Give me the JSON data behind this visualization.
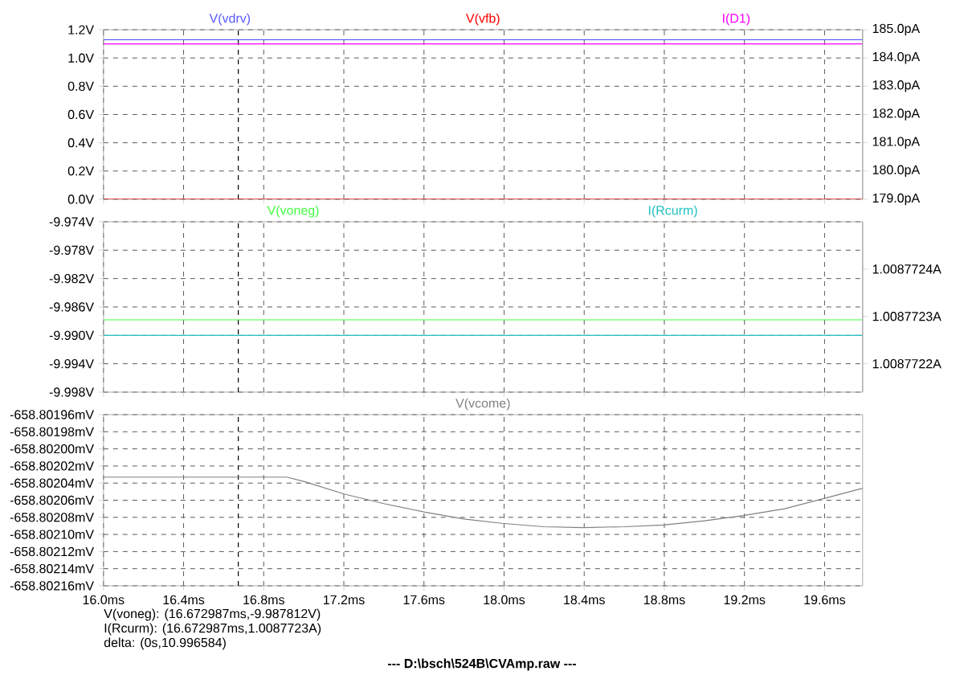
{
  "chart_data": [
    {
      "type": "line",
      "x": [
        16,
        19.79
      ],
      "xlim": [
        16,
        19.79
      ],
      "xticks": [
        {
          "value": 16.0,
          "label": null
        },
        {
          "value": 16.4,
          "label": null
        },
        {
          "value": 16.8,
          "label": null
        },
        {
          "value": 17.2,
          "label": null
        },
        {
          "value": 17.6,
          "label": null
        },
        {
          "value": 18.0,
          "label": null
        },
        {
          "value": 18.4,
          "label": null
        },
        {
          "value": 18.8,
          "label": null
        },
        {
          "value": 19.2,
          "label": null
        },
        {
          "value": 19.6,
          "label": null
        }
      ],
      "ylim": [
        0,
        1.2
      ],
      "yticks": [
        {
          "value": 0,
          "label": "0.0V"
        },
        {
          "value": 0.2,
          "label": "0.2V"
        },
        {
          "value": 0.4,
          "label": "0.4V"
        },
        {
          "value": 0.6,
          "label": "0.6V"
        },
        {
          "value": 0.8,
          "label": "0.8V"
        },
        {
          "value": 1.0,
          "label": "1.0V"
        },
        {
          "value": 1.2,
          "label": "1.2V"
        }
      ],
      "y2lim": [
        179,
        185
      ],
      "y2ticks": [
        {
          "value": 179,
          "label": "179.0pA"
        },
        {
          "value": 180,
          "label": "180.0pA"
        },
        {
          "value": 181,
          "label": "181.0pA"
        },
        {
          "value": 182,
          "label": "182.0pA"
        },
        {
          "value": 183,
          "label": "183.0pA"
        },
        {
          "value": 184,
          "label": "184.0pA"
        },
        {
          "value": 185,
          "label": "185.0pA"
        }
      ],
      "grid": true,
      "legend": "top",
      "tick_labels": "y",
      "series": [
        {
          "name": "V(vdrv)",
          "color": "#5a5aff",
          "values": [
            1.13,
            1.13
          ]
        },
        {
          "name": "V(vfb)",
          "color": "#ff0000",
          "values": [
            0,
            0
          ]
        },
        {
          "name": "I(D1)",
          "color": "#ff00ff",
          "values": [
            184.5,
            184.5
          ],
          "axis": "y2"
        }
      ],
      "ref_lines": [
        {
          "axis": "x",
          "value": 16.672987,
          "color": "#000000",
          "line_style": "dashed"
        }
      ]
    },
    {
      "type": "line",
      "x": [
        16,
        19.79
      ],
      "xlim": [
        16,
        19.79
      ],
      "xticks": [
        {
          "value": 16.0,
          "label": null
        },
        {
          "value": 16.4,
          "label": null
        },
        {
          "value": 16.8,
          "label": null
        },
        {
          "value": 17.2,
          "label": null
        },
        {
          "value": 17.6,
          "label": null
        },
        {
          "value": 18.0,
          "label": null
        },
        {
          "value": 18.4,
          "label": null
        },
        {
          "value": 18.8,
          "label": null
        },
        {
          "value": 19.2,
          "label": null
        },
        {
          "value": 19.6,
          "label": null
        }
      ],
      "ylim": [
        -9.998,
        -9.974
      ],
      "yticks": [
        {
          "value": -9.998,
          "label": "-9.998V"
        },
        {
          "value": -9.994,
          "label": "-9.994V"
        },
        {
          "value": -9.99,
          "label": "-9.990V"
        },
        {
          "value": -9.986,
          "label": "-9.986V"
        },
        {
          "value": -9.982,
          "label": "-9.982V"
        },
        {
          "value": -9.978,
          "label": "-9.978V"
        },
        {
          "value": -9.974,
          "label": "-9.974V"
        }
      ],
      "y2lim": [
        1.00877214,
        1.0087725
      ],
      "y2ticks": [
        {
          "value": 1.0087722,
          "label": "1.0087722A"
        },
        {
          "value": 1.0087723,
          "label": "1.0087723A"
        },
        {
          "value": 1.0087724,
          "label": "1.0087724A"
        }
      ],
      "grid": true,
      "legend": "top",
      "tick_labels": "y",
      "series": [
        {
          "name": "V(voneg)",
          "color": "#40ff40",
          "values": [
            -9.987812,
            -9.987812
          ]
        },
        {
          "name": "I(Rcurm)",
          "color": "#20c0c0",
          "values": [
            1.00877226,
            1.00877226
          ],
          "axis": "y2"
        }
      ],
      "ref_lines": [
        {
          "axis": "x",
          "value": 16.672987,
          "color": "#000000",
          "line_style": "dashed"
        }
      ]
    },
    {
      "type": "line",
      "x": [
        16.0,
        16.915,
        17.0,
        17.205,
        17.4,
        17.606,
        17.8,
        17.99,
        18.2,
        18.394,
        18.6,
        18.794,
        19.0,
        19.194,
        19.4,
        19.597,
        19.79
      ],
      "xlim": [
        16,
        19.79
      ],
      "xticks": [
        {
          "value": 16.0,
          "label": "16.0ms"
        },
        {
          "value": 16.4,
          "label": "16.4ms"
        },
        {
          "value": 16.8,
          "label": "16.8ms"
        },
        {
          "value": 17.2,
          "label": "17.2ms"
        },
        {
          "value": 17.6,
          "label": "17.6ms"
        },
        {
          "value": 18.0,
          "label": "18.0ms"
        },
        {
          "value": 18.4,
          "label": "18.4ms"
        },
        {
          "value": 18.8,
          "label": "18.8ms"
        },
        {
          "value": 19.2,
          "label": "19.2ms"
        },
        {
          "value": 19.6,
          "label": "19.6ms"
        }
      ],
      "ylim": [
        -658.80216,
        -658.80196
      ],
      "yticks": [
        {
          "value": -658.80216,
          "label": "-658.80216mV"
        },
        {
          "value": -658.80214,
          "label": "-658.80214mV"
        },
        {
          "value": -658.80212,
          "label": "-658.80212mV"
        },
        {
          "value": -658.8021,
          "label": "-658.80210mV"
        },
        {
          "value": -658.80208,
          "label": "-658.80208mV"
        },
        {
          "value": -658.80206,
          "label": "-658.80206mV"
        },
        {
          "value": -658.80204,
          "label": "-658.80204mV"
        },
        {
          "value": -658.80202,
          "label": "-658.80202mV"
        },
        {
          "value": -658.802,
          "label": "-658.80200mV"
        },
        {
          "value": -658.80198,
          "label": "-658.80198mV"
        },
        {
          "value": -658.80196,
          "label": "-658.80196mV"
        }
      ],
      "grid": true,
      "legend": "top",
      "series": [
        {
          "name": "V(vcome)",
          "color": "#808080",
          "values": [
            -658.802033,
            -658.802033,
            -658.802038,
            -658.802053,
            -658.802064,
            -658.802074,
            -658.802082,
            -658.802087,
            -658.802091,
            -658.802092,
            -658.802091,
            -658.802089,
            -658.802084,
            -658.802078,
            -658.80207,
            -658.802058,
            -658.802046
          ]
        }
      ],
      "ref_lines": [
        {
          "axis": "x",
          "value": 16.672987,
          "color": "#000000",
          "line_style": "dashed"
        }
      ],
      "annotations": [
        "V(voneg): (16.672987ms,-9.987812V)",
        "I(Rcurm): (16.672987ms,1.0087723A)",
        "delta: (0s,10.996584)",
        "---  D:\\bsch\\524B\\CVAmp.raw  ---"
      ]
    }
  ]
}
